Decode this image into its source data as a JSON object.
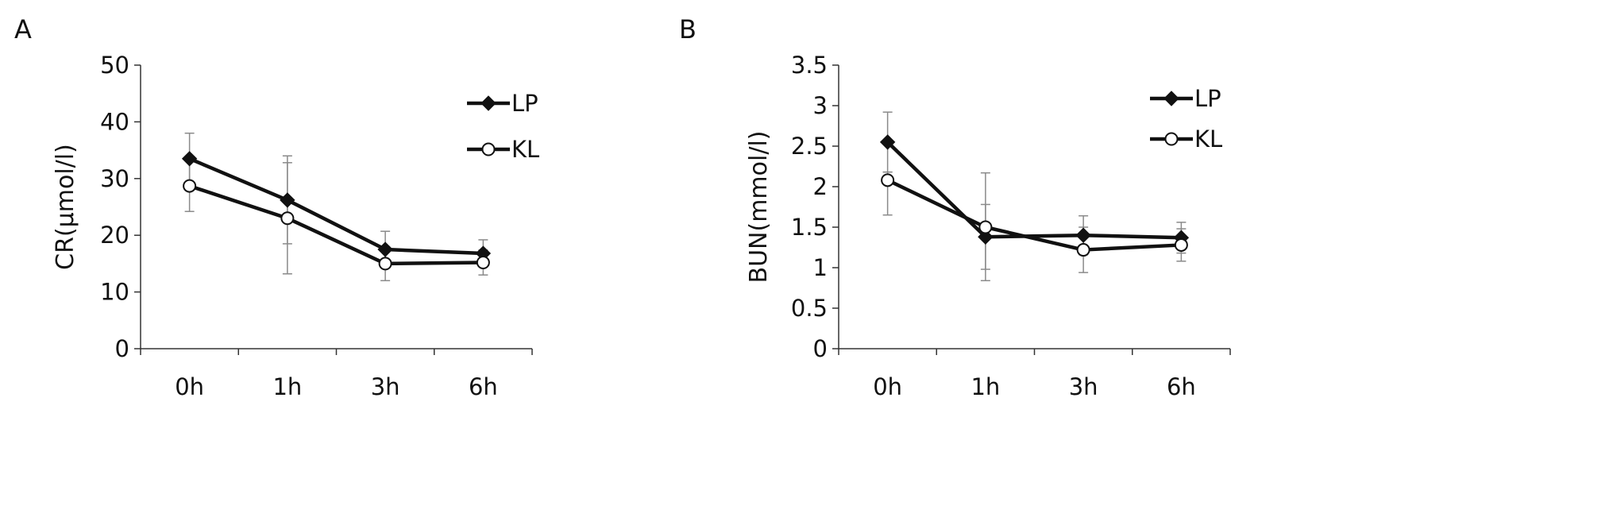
{
  "chart_data": [
    {
      "panel_label": "A",
      "type": "line",
      "categories": [
        "0h",
        "1h",
        "3h",
        "6h"
      ],
      "ylabel": "CR(μmol/l)",
      "ylim": [
        0,
        50
      ],
      "yticks": [
        "0",
        "10",
        "20",
        "30",
        "40",
        "50"
      ],
      "series": [
        {
          "name": "LP",
          "marker": "diamond",
          "values": [
            33.5,
            26.2,
            17.5,
            16.8
          ],
          "err_low": [
            29.0,
            18.5,
            14.3,
            14.5
          ],
          "err_high": [
            38.0,
            34.0,
            20.7,
            19.2
          ]
        },
        {
          "name": "KL",
          "marker": "circle",
          "values": [
            28.7,
            23.0,
            15.0,
            15.2
          ],
          "err_low": [
            24.2,
            13.2,
            12.0,
            13.0
          ],
          "err_high": [
            33.2,
            32.8,
            18.0,
            17.4
          ]
        }
      ],
      "legend_position": "top-right",
      "grid": false
    },
    {
      "panel_label": "B",
      "type": "line",
      "categories": [
        "0h",
        "1h",
        "3h",
        "6h"
      ],
      "ylabel": "BUN(mmol/l)",
      "ylim": [
        0,
        3.5
      ],
      "yticks": [
        "0",
        "0.5",
        "1",
        "1.5",
        "2",
        "2.5",
        "3",
        "3.5"
      ],
      "series": [
        {
          "name": "LP",
          "marker": "diamond",
          "values": [
            2.55,
            1.38,
            1.4,
            1.37
          ],
          "err_low": [
            2.18,
            0.98,
            1.16,
            1.18
          ],
          "err_high": [
            2.92,
            1.78,
            1.64,
            1.56
          ]
        },
        {
          "name": "KL",
          "marker": "circle",
          "values": [
            2.08,
            1.5,
            1.22,
            1.28
          ],
          "err_low": [
            1.65,
            0.84,
            0.94,
            1.08
          ],
          "err_high": [
            2.18,
            2.17,
            1.5,
            1.48
          ]
        }
      ],
      "legend_position": "top-right",
      "grid": false
    }
  ]
}
